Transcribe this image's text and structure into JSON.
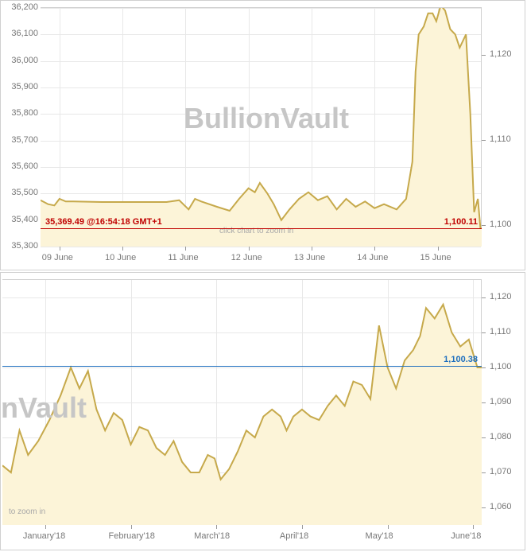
{
  "chart_top": {
    "type": "area",
    "watermark_text": "BullionVault",
    "zoom_hint": "click chart to zoom in",
    "background_color": "#ffffff",
    "area_fill": "#fcf4d8",
    "line_color": "#c6a94b",
    "line_width": 2,
    "grid_color": "#e8e8e8",
    "left_axis": {
      "min": 35300,
      "max": 36200,
      "tick_step": 100,
      "labels": [
        "35,300",
        "35,400",
        "35,500",
        "35,600",
        "35,700",
        "35,800",
        "35,900",
        "36,000",
        "36,100",
        "36,200"
      ]
    },
    "right_axis": {
      "labels": [
        {
          "value": 1100,
          "label": "1,100"
        },
        {
          "value": 1110,
          "label": "1,110"
        },
        {
          "value": 1120,
          "label": "1,120"
        }
      ],
      "label_map": {
        "1100": 35380,
        "1110": 35702,
        "1120": 36024
      }
    },
    "x_labels": [
      "09 June",
      "10 June",
      "11 June",
      "12 June",
      "13 June",
      "14 June",
      "15 June"
    ],
    "left_price_label": "35,369.49 @16:54:18 GMT+1",
    "left_price_color": "#c00000",
    "right_price_label": "1,100.11",
    "right_price_color": "#c00000",
    "reference_line_color": "#c00000",
    "reference_y_left": 35369.49,
    "data": [
      [
        0.0,
        35475
      ],
      [
        0.12,
        35460
      ],
      [
        0.22,
        35455
      ],
      [
        0.3,
        35480
      ],
      [
        0.4,
        35470
      ],
      [
        0.52,
        35470
      ],
      [
        1.0,
        35468
      ],
      [
        1.5,
        35468
      ],
      [
        2.0,
        35468
      ],
      [
        2.2,
        35475
      ],
      [
        2.35,
        35440
      ],
      [
        2.45,
        35480
      ],
      [
        2.55,
        35470
      ],
      [
        2.8,
        35450
      ],
      [
        3.0,
        35435
      ],
      [
        3.15,
        35480
      ],
      [
        3.3,
        35520
      ],
      [
        3.4,
        35505
      ],
      [
        3.48,
        35540
      ],
      [
        3.6,
        35500
      ],
      [
        3.7,
        35460
      ],
      [
        3.82,
        35400
      ],
      [
        3.95,
        35440
      ],
      [
        4.1,
        35480
      ],
      [
        4.25,
        35505
      ],
      [
        4.4,
        35475
      ],
      [
        4.55,
        35490
      ],
      [
        4.7,
        35440
      ],
      [
        4.85,
        35480
      ],
      [
        5.0,
        35450
      ],
      [
        5.15,
        35470
      ],
      [
        5.3,
        35445
      ],
      [
        5.45,
        35460
      ],
      [
        5.65,
        35440
      ],
      [
        5.8,
        35480
      ],
      [
        5.9,
        35620
      ],
      [
        5.95,
        35960
      ],
      [
        6.0,
        36100
      ],
      [
        6.08,
        36130
      ],
      [
        6.15,
        36180
      ],
      [
        6.22,
        36180
      ],
      [
        6.28,
        36150
      ],
      [
        6.35,
        36210
      ],
      [
        6.42,
        36190
      ],
      [
        6.5,
        36120
      ],
      [
        6.58,
        36100
      ],
      [
        6.65,
        36050
      ],
      [
        6.75,
        36100
      ],
      [
        6.82,
        35800
      ],
      [
        6.88,
        35430
      ],
      [
        6.94,
        35480
      ],
      [
        6.98,
        35370
      ],
      [
        7.0,
        35369
      ]
    ],
    "x_range": [
      0,
      7
    ]
  },
  "chart_bottom": {
    "type": "area",
    "watermark_text": "nVault",
    "zoom_hint": "to zoom in",
    "background_color": "#ffffff",
    "area_fill": "#fcf4d8",
    "line_color": "#c6a94b",
    "line_width": 2,
    "grid_color": "#e8e8e8",
    "right_axis": {
      "min": 1055,
      "max": 1125,
      "tick_step": 10,
      "labels": [
        "1,060",
        "1,070",
        "1,080",
        "1,090",
        "1,100",
        "1,110",
        "1,120"
      ]
    },
    "x_labels": [
      "January'18",
      "February'18",
      "March'18",
      "April'18",
      "May'18",
      "June'18"
    ],
    "right_price_label": "1,100.38",
    "right_price_color": "#1e6fbf",
    "reference_line_color": "#1e6fbf",
    "reference_y": 1100.38,
    "data": [
      [
        0.0,
        1072
      ],
      [
        0.1,
        1070
      ],
      [
        0.2,
        1082
      ],
      [
        0.3,
        1075
      ],
      [
        0.42,
        1079
      ],
      [
        0.55,
        1085
      ],
      [
        0.68,
        1092
      ],
      [
        0.8,
        1100
      ],
      [
        0.9,
        1094
      ],
      [
        1.0,
        1099
      ],
      [
        1.1,
        1088
      ],
      [
        1.2,
        1082
      ],
      [
        1.3,
        1087
      ],
      [
        1.4,
        1085
      ],
      [
        1.5,
        1078
      ],
      [
        1.6,
        1083
      ],
      [
        1.7,
        1082
      ],
      [
        1.8,
        1077
      ],
      [
        1.9,
        1075
      ],
      [
        2.0,
        1079
      ],
      [
        2.1,
        1073
      ],
      [
        2.2,
        1070
      ],
      [
        2.3,
        1070
      ],
      [
        2.4,
        1075
      ],
      [
        2.48,
        1074
      ],
      [
        2.55,
        1068
      ],
      [
        2.65,
        1071
      ],
      [
        2.75,
        1076
      ],
      [
        2.85,
        1082
      ],
      [
        2.95,
        1080
      ],
      [
        3.05,
        1086
      ],
      [
        3.15,
        1088
      ],
      [
        3.25,
        1086
      ],
      [
        3.32,
        1082
      ],
      [
        3.4,
        1086
      ],
      [
        3.5,
        1088
      ],
      [
        3.6,
        1086
      ],
      [
        3.7,
        1085
      ],
      [
        3.8,
        1089
      ],
      [
        3.9,
        1092
      ],
      [
        4.0,
        1089
      ],
      [
        4.1,
        1096
      ],
      [
        4.2,
        1095
      ],
      [
        4.3,
        1091
      ],
      [
        4.4,
        1112
      ],
      [
        4.5,
        1100
      ],
      [
        4.6,
        1094
      ],
      [
        4.7,
        1102
      ],
      [
        4.8,
        1105
      ],
      [
        4.88,
        1109
      ],
      [
        4.95,
        1117
      ],
      [
        5.05,
        1114
      ],
      [
        5.15,
        1118
      ],
      [
        5.25,
        1110
      ],
      [
        5.35,
        1106
      ],
      [
        5.45,
        1108
      ],
      [
        5.55,
        1100
      ],
      [
        5.6,
        1100
      ]
    ],
    "x_range": [
      0,
      5.6
    ]
  }
}
